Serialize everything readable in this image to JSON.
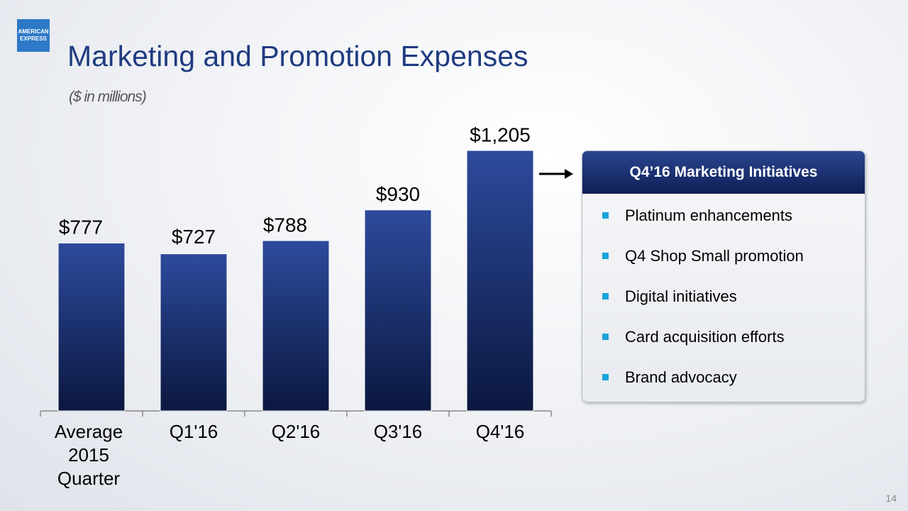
{
  "chart_data": {
    "type": "bar",
    "logo": "AMERICAN EXPRESS",
    "title": "Marketing and Promotion Expenses",
    "subtitle": "($ in millions)",
    "categories": [
      "Average 2015 Quarter",
      "Q1'16",
      "Q2'16",
      "Q3'16",
      "Q4'16"
    ],
    "values": [
      777,
      727,
      788,
      930,
      1205
    ],
    "value_labels": [
      "$777",
      "$727",
      "$788",
      "$930",
      "$1,205"
    ],
    "color": "#1b2f73",
    "panel": {
      "title": "Q4’16 Marketing Initiatives",
      "items": [
        "Platinum enhancements",
        "Q4 Shop Small promotion",
        "Digital initiatives",
        "Card acquisition efforts",
        "Brand advocacy"
      ]
    },
    "page_number": "14"
  }
}
